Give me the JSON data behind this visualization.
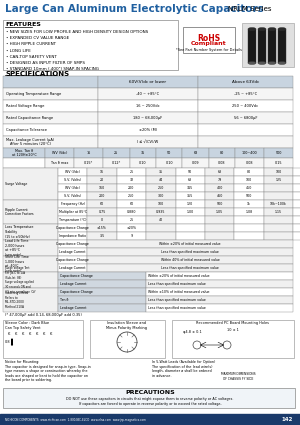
{
  "title": "Large Can Aluminum Electrolytic Capacitors",
  "series": "NRLM Series",
  "title_color": "#2060a0",
  "features": [
    "NEW SIZES FOR LOW PROFILE AND HIGH DENSITY DESIGN OPTIONS",
    "EXPANDED CV VALUE RANGE",
    "HIGH RIPPLE CURRENT",
    "LONG LIFE",
    "CAN-TOP SAFETY VENT",
    "DESIGNED AS INPUT FILTER OF SMPS",
    "STANDARD 10mm (.400\") SNAP-IN SPACING"
  ],
  "background": "#ffffff",
  "footer_text": "NICHICON COMPONENTS  www.nichicon.com  1-800-NIC-ELCO  www.elna.com  www.jrp-magnetics.com",
  "page_num": "142"
}
